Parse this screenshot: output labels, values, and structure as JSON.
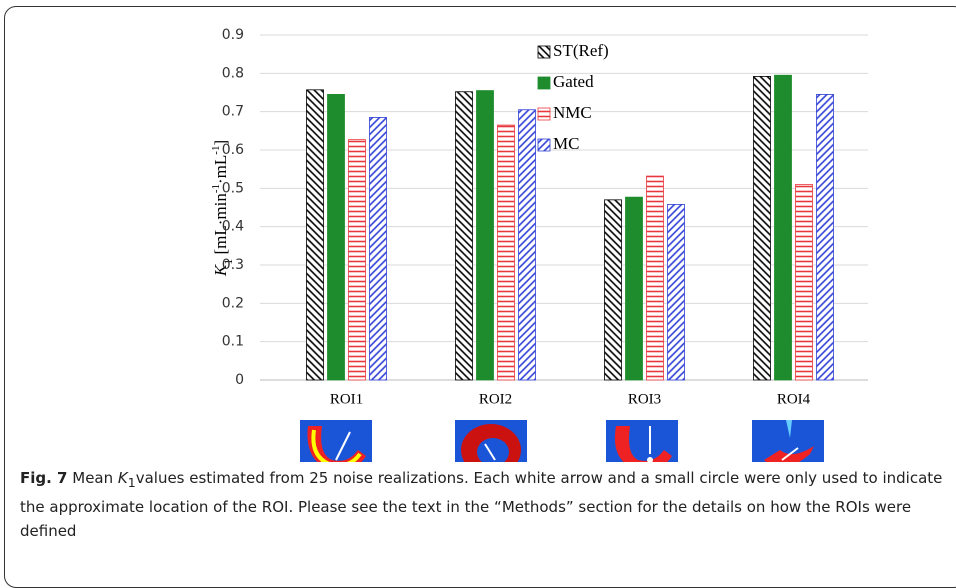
{
  "chart_data": {
    "type": "bar",
    "ylabel": [
      "K",
      "1",
      " [mL·min",
      "-1",
      "·mL",
      "-1",
      "]"
    ],
    "categories": [
      "ROI1",
      "ROI2",
      "ROI3",
      "ROI4"
    ],
    "series": [
      {
        "name": "ST(Ref)",
        "color": "#000000",
        "pattern": "diagonal",
        "values": [
          0.757,
          0.752,
          0.47,
          0.792
        ]
      },
      {
        "name": "Gated",
        "color": "#1e8c2c",
        "pattern": "solid",
        "values": [
          0.745,
          0.755,
          0.477,
          0.795
        ]
      },
      {
        "name": "NMC",
        "color": "#e8383d",
        "pattern": "horizontal",
        "values": [
          0.627,
          0.665,
          0.532,
          0.51
        ]
      },
      {
        "name": "MC",
        "color": "#2f3fd6",
        "pattern": "antidiagonal",
        "values": [
          0.685,
          0.705,
          0.458,
          0.745
        ]
      }
    ],
    "ylim": [
      0,
      0.9
    ],
    "yticks": [
      0,
      0.1,
      0.2,
      0.3,
      0.4,
      0.5,
      0.6,
      0.7,
      0.8,
      0.9
    ],
    "grid": true,
    "legend": "top"
  },
  "caption": {
    "label": "Fig. 7",
    "parts": [
      "Mean ",
      "K",
      "1",
      "values estimated from 25 noise realizations. Each white arrow and a small circle were only used to indicate the approximate location of the ROI. Please see the text in the “Methods” section for the details on how the ROIs were defined"
    ]
  }
}
